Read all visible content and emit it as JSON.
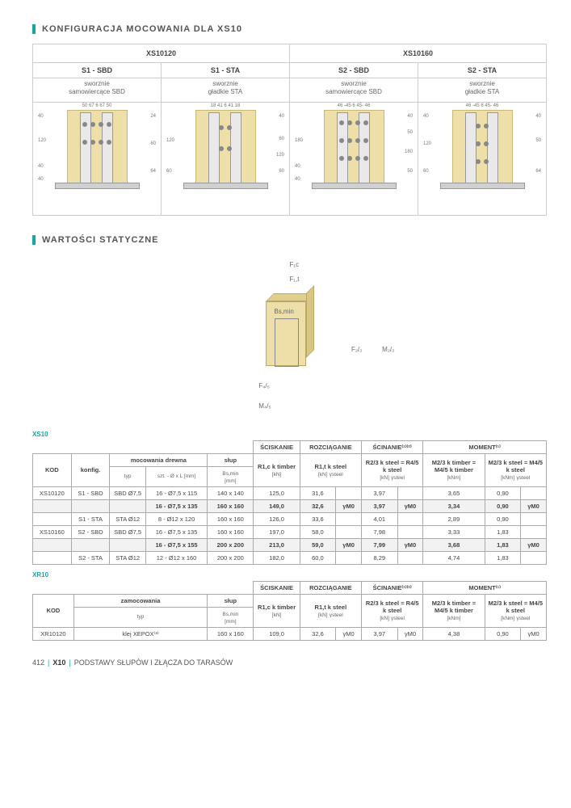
{
  "section1_title": "KONFIGURACJA MOCOWANIA DLA XS10",
  "section2_title": "WARTOŚCI STATYCZNE",
  "config": {
    "models": [
      "XS10120",
      "XS10160"
    ],
    "variants": [
      {
        "code": "S1 - SBD",
        "desc1": "sworznie",
        "desc2": "samowiercące SBD"
      },
      {
        "code": "S1 - STA",
        "desc1": "sworznie",
        "desc2": "gładkie STA"
      },
      {
        "code": "S2 - SBD",
        "desc1": "sworznie",
        "desc2": "samowiercące SBD"
      },
      {
        "code": "S2 - STA",
        "desc1": "sworznie",
        "desc2": "gładkie STA"
      }
    ],
    "dims_top": [
      "50 67 6 67 50",
      "18 41 6 41 18",
      "46 -45 6 45- 46",
      "46 -45 6 45- 46"
    ],
    "dims_left": [
      [
        "40",
        "120",
        "40",
        "40"
      ],
      [
        "120",
        "60"
      ],
      [
        "180",
        "40",
        "40"
      ],
      [
        "40",
        "120",
        "60"
      ]
    ],
    "dims_right": [
      [
        "24",
        "60",
        "64"
      ],
      [
        "40",
        "60",
        "120",
        "60"
      ],
      [
        "40",
        "50",
        "180",
        "50"
      ],
      [
        "40",
        "50",
        "64"
      ]
    ]
  },
  "schematic_labels": {
    "Fc": "F₁c",
    "F1t": "F₁,t",
    "Bs": "Bs,min",
    "F23": "F₂/₃",
    "M23": "M₂/₃",
    "F45": "F₄/₅",
    "M45": "M₄/₅"
  },
  "xs10": {
    "title": "XS10",
    "head_groups": [
      "ŚCISKANIE",
      "ROZCIĄGANIE",
      "ŚCINANIE⁽¹⁾⁽²⁾",
      "MOMENT⁽¹⁾"
    ],
    "cols": {
      "kod": "KOD",
      "konfig": "konfig.",
      "moc": "mocowania drewna",
      "slup": "słup",
      "typ": "typ",
      "szt": "szt. - Ø x L [mm]",
      "bsmin": "Bs,min",
      "mm": "[mm]",
      "r1c": "R1,c k timber",
      "kn": "[kN]",
      "r1t": "R1,t k steel",
      "ys": "γsteel",
      "scin": "R2/3 k steel = R4/5 k steel",
      "m23": "M2/3 k timber = M4/5 k timber",
      "m45": "M2/3 k steel = M4/5 k steel",
      "knm": "[kNm]"
    },
    "rows": [
      {
        "kod": "XS10120",
        "konfig": "S1 - SBD",
        "typ": "SBD Ø7,5",
        "szt": "16 - Ø7,5 x 115",
        "bs": "140 x 140",
        "r1c": "125,0",
        "r1t": "31,6",
        "ys": "",
        "scin": "3,97",
        "scin_y": "",
        "m23": "3,65",
        "m45": "0,90",
        "m_y": ""
      },
      {
        "hi": true,
        "kod": "",
        "konfig": "",
        "typ": "",
        "szt": "16 - Ø7,5 x 135",
        "bs": "160 x 160",
        "r1c": "149,0",
        "r1t": "32,6",
        "ys": "γM0",
        "scin": "3,97",
        "scin_y": "γM0",
        "m23": "3,34",
        "m45": "0,90",
        "m_y": "γM0"
      },
      {
        "kod": "",
        "konfig": "S1 - STA",
        "typ": "STA Ø12",
        "szt": "8 - Ø12 x 120",
        "bs": "160 x 160",
        "r1c": "126,0",
        "r1t": "33,6",
        "ys": "",
        "scin": "4,01",
        "scin_y": "",
        "m23": "2,89",
        "m45": "0,90",
        "m_y": ""
      },
      {
        "kod": "XS10160",
        "konfig": "S2 - SBD",
        "typ": "SBD Ø7,5",
        "szt": "16 - Ø7,5 x 135",
        "bs": "160 x 160",
        "r1c": "197,0",
        "r1t": "58,0",
        "ys": "",
        "scin": "7,98",
        "scin_y": "",
        "m23": "3,33",
        "m45": "1,83",
        "m_y": ""
      },
      {
        "hi": true,
        "kod": "",
        "konfig": "",
        "typ": "",
        "szt": "16 - Ø7,5 x 155",
        "bs": "200 x 200",
        "r1c": "213,0",
        "r1t": "59,0",
        "ys": "γM0",
        "scin": "7,99",
        "scin_y": "γM0",
        "m23": "3,68",
        "m45": "1,83",
        "m_y": "γM0"
      },
      {
        "kod": "",
        "konfig": "S2 - STA",
        "typ": "STA Ø12",
        "szt": "12 - Ø12 x 160",
        "bs": "200 x 200",
        "r1c": "182,0",
        "r1t": "60,0",
        "ys": "",
        "scin": "8,29",
        "scin_y": "",
        "m23": "4,74",
        "m45": "1,83",
        "m_y": ""
      }
    ]
  },
  "xr10": {
    "title": "XR10",
    "cols": {
      "kod": "KOD",
      "zam": "zamocowania",
      "slup": "słup",
      "typ": "typ",
      "bsmin": "Bs,min",
      "mm": "[mm]"
    },
    "rows": [
      {
        "kod": "XR10120",
        "typ": "klej XEPOX⁽³⁾",
        "bs": "160 x 160",
        "r1c": "109,0",
        "r1t": "32,6",
        "r1t_y": "γM0",
        "scin": "3,97",
        "scin_y": "γM0",
        "m23": "4,38",
        "m45": "0,90",
        "m_y": "γM0"
      }
    ]
  },
  "footer": {
    "page": "412",
    "code": "X10",
    "text": "PODSTAWY SŁUPÓW I ZŁĄCZA DO TARASÓW"
  },
  "colors": {
    "accent": "#1aa5a5",
    "wood": "#eedfa9"
  }
}
